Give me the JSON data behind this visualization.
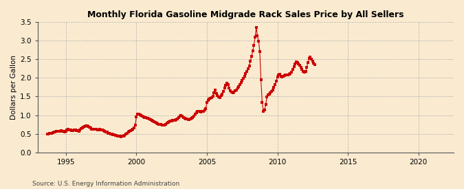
{
  "title": "Monthly Florida Gasoline Midgrade Rack Sales Price by All Sellers",
  "ylabel": "Dollars per Gallon",
  "source": "Source: U.S. Energy Information Administration",
  "background_color": "#faebd0",
  "dot_color": "#cc0000",
  "grid_color": "#aaaaaa",
  "xlim": [
    1993.0,
    2022.5
  ],
  "ylim": [
    0.0,
    3.5
  ],
  "yticks": [
    0.0,
    0.5,
    1.0,
    1.5,
    2.0,
    2.5,
    3.0,
    3.5
  ],
  "xticks": [
    1995,
    2000,
    2005,
    2010,
    2015,
    2020
  ],
  "data": [
    [
      1993.67,
      0.49
    ],
    [
      1993.75,
      0.5
    ],
    [
      1993.83,
      0.51
    ],
    [
      1993.92,
      0.52
    ],
    [
      1994.0,
      0.52
    ],
    [
      1994.08,
      0.53
    ],
    [
      1994.17,
      0.54
    ],
    [
      1994.25,
      0.55
    ],
    [
      1994.33,
      0.56
    ],
    [
      1994.42,
      0.57
    ],
    [
      1994.5,
      0.57
    ],
    [
      1994.58,
      0.57
    ],
    [
      1994.67,
      0.58
    ],
    [
      1994.75,
      0.57
    ],
    [
      1994.83,
      0.56
    ],
    [
      1994.92,
      0.55
    ],
    [
      1995.0,
      0.57
    ],
    [
      1995.08,
      0.6
    ],
    [
      1995.17,
      0.62
    ],
    [
      1995.25,
      0.61
    ],
    [
      1995.33,
      0.6
    ],
    [
      1995.42,
      0.59
    ],
    [
      1995.5,
      0.59
    ],
    [
      1995.58,
      0.6
    ],
    [
      1995.67,
      0.61
    ],
    [
      1995.75,
      0.59
    ],
    [
      1995.83,
      0.58
    ],
    [
      1995.92,
      0.57
    ],
    [
      1996.0,
      0.61
    ],
    [
      1996.08,
      0.64
    ],
    [
      1996.17,
      0.66
    ],
    [
      1996.25,
      0.68
    ],
    [
      1996.33,
      0.7
    ],
    [
      1996.42,
      0.72
    ],
    [
      1996.5,
      0.71
    ],
    [
      1996.58,
      0.69
    ],
    [
      1996.67,
      0.67
    ],
    [
      1996.75,
      0.65
    ],
    [
      1996.83,
      0.63
    ],
    [
      1996.92,
      0.62
    ],
    [
      1997.0,
      0.63
    ],
    [
      1997.08,
      0.63
    ],
    [
      1997.17,
      0.62
    ],
    [
      1997.25,
      0.61
    ],
    [
      1997.33,
      0.61
    ],
    [
      1997.42,
      0.62
    ],
    [
      1997.5,
      0.61
    ],
    [
      1997.58,
      0.6
    ],
    [
      1997.67,
      0.59
    ],
    [
      1997.75,
      0.57
    ],
    [
      1997.83,
      0.55
    ],
    [
      1997.92,
      0.54
    ],
    [
      1998.0,
      0.52
    ],
    [
      1998.08,
      0.51
    ],
    [
      1998.17,
      0.5
    ],
    [
      1998.25,
      0.49
    ],
    [
      1998.33,
      0.48
    ],
    [
      1998.42,
      0.47
    ],
    [
      1998.5,
      0.46
    ],
    [
      1998.58,
      0.45
    ],
    [
      1998.67,
      0.44
    ],
    [
      1998.75,
      0.43
    ],
    [
      1998.83,
      0.43
    ],
    [
      1998.92,
      0.42
    ],
    [
      1999.0,
      0.43
    ],
    [
      1999.08,
      0.44
    ],
    [
      1999.17,
      0.46
    ],
    [
      1999.25,
      0.49
    ],
    [
      1999.33,
      0.52
    ],
    [
      1999.42,
      0.55
    ],
    [
      1999.5,
      0.57
    ],
    [
      1999.58,
      0.59
    ],
    [
      1999.67,
      0.61
    ],
    [
      1999.75,
      0.62
    ],
    [
      1999.83,
      0.66
    ],
    [
      1999.92,
      0.74
    ],
    [
      2000.0,
      0.96
    ],
    [
      2000.08,
      1.02
    ],
    [
      2000.17,
      1.03
    ],
    [
      2000.25,
      1.01
    ],
    [
      2000.33,
      0.99
    ],
    [
      2000.42,
      0.97
    ],
    [
      2000.5,
      0.95
    ],
    [
      2000.58,
      0.94
    ],
    [
      2000.67,
      0.93
    ],
    [
      2000.75,
      0.92
    ],
    [
      2000.83,
      0.91
    ],
    [
      2000.92,
      0.9
    ],
    [
      2001.0,
      0.88
    ],
    [
      2001.08,
      0.86
    ],
    [
      2001.17,
      0.84
    ],
    [
      2001.25,
      0.82
    ],
    [
      2001.33,
      0.8
    ],
    [
      2001.42,
      0.78
    ],
    [
      2001.5,
      0.77
    ],
    [
      2001.58,
      0.76
    ],
    [
      2001.67,
      0.75
    ],
    [
      2001.75,
      0.75
    ],
    [
      2001.83,
      0.74
    ],
    [
      2001.92,
      0.73
    ],
    [
      2002.0,
      0.74
    ],
    [
      2002.08,
      0.76
    ],
    [
      2002.17,
      0.78
    ],
    [
      2002.25,
      0.8
    ],
    [
      2002.33,
      0.82
    ],
    [
      2002.42,
      0.84
    ],
    [
      2002.5,
      0.85
    ],
    [
      2002.58,
      0.86
    ],
    [
      2002.67,
      0.87
    ],
    [
      2002.75,
      0.87
    ],
    [
      2002.83,
      0.88
    ],
    [
      2002.92,
      0.9
    ],
    [
      2003.0,
      0.93
    ],
    [
      2003.08,
      0.97
    ],
    [
      2003.17,
      0.99
    ],
    [
      2003.25,
      0.97
    ],
    [
      2003.33,
      0.94
    ],
    [
      2003.42,
      0.92
    ],
    [
      2003.5,
      0.9
    ],
    [
      2003.58,
      0.89
    ],
    [
      2003.67,
      0.88
    ],
    [
      2003.75,
      0.88
    ],
    [
      2003.83,
      0.89
    ],
    [
      2003.92,
      0.91
    ],
    [
      2004.0,
      0.94
    ],
    [
      2004.08,
      0.98
    ],
    [
      2004.17,
      1.02
    ],
    [
      2004.25,
      1.07
    ],
    [
      2004.33,
      1.1
    ],
    [
      2004.42,
      1.11
    ],
    [
      2004.5,
      1.1
    ],
    [
      2004.58,
      1.09
    ],
    [
      2004.67,
      1.1
    ],
    [
      2004.75,
      1.11
    ],
    [
      2004.83,
      1.13
    ],
    [
      2004.92,
      1.18
    ],
    [
      2005.0,
      1.35
    ],
    [
      2005.08,
      1.4
    ],
    [
      2005.17,
      1.44
    ],
    [
      2005.25,
      1.46
    ],
    [
      2005.33,
      1.47
    ],
    [
      2005.42,
      1.5
    ],
    [
      2005.5,
      1.6
    ],
    [
      2005.58,
      1.68
    ],
    [
      2005.67,
      1.58
    ],
    [
      2005.75,
      1.52
    ],
    [
      2005.83,
      1.48
    ],
    [
      2005.92,
      1.47
    ],
    [
      2006.0,
      1.52
    ],
    [
      2006.08,
      1.57
    ],
    [
      2006.17,
      1.63
    ],
    [
      2006.25,
      1.72
    ],
    [
      2006.33,
      1.8
    ],
    [
      2006.42,
      1.85
    ],
    [
      2006.5,
      1.82
    ],
    [
      2006.58,
      1.72
    ],
    [
      2006.67,
      1.65
    ],
    [
      2006.75,
      1.61
    ],
    [
      2006.83,
      1.6
    ],
    [
      2006.92,
      1.62
    ],
    [
      2007.0,
      1.65
    ],
    [
      2007.08,
      1.68
    ],
    [
      2007.17,
      1.72
    ],
    [
      2007.25,
      1.77
    ],
    [
      2007.33,
      1.82
    ],
    [
      2007.42,
      1.87
    ],
    [
      2007.5,
      1.93
    ],
    [
      2007.58,
      1.98
    ],
    [
      2007.67,
      2.05
    ],
    [
      2007.75,
      2.12
    ],
    [
      2007.83,
      2.18
    ],
    [
      2007.92,
      2.25
    ],
    [
      2008.0,
      2.32
    ],
    [
      2008.08,
      2.45
    ],
    [
      2008.17,
      2.58
    ],
    [
      2008.25,
      2.72
    ],
    [
      2008.33,
      2.88
    ],
    [
      2008.42,
      3.1
    ],
    [
      2008.5,
      3.35
    ],
    [
      2008.58,
      3.13
    ],
    [
      2008.67,
      2.98
    ],
    [
      2008.75,
      2.7
    ],
    [
      2008.83,
      1.95
    ],
    [
      2008.92,
      1.35
    ],
    [
      2009.0,
      1.1
    ],
    [
      2009.08,
      1.13
    ],
    [
      2009.17,
      1.28
    ],
    [
      2009.25,
      1.48
    ],
    [
      2009.33,
      1.55
    ],
    [
      2009.42,
      1.57
    ],
    [
      2009.5,
      1.6
    ],
    [
      2009.58,
      1.64
    ],
    [
      2009.67,
      1.68
    ],
    [
      2009.75,
      1.74
    ],
    [
      2009.83,
      1.82
    ],
    [
      2009.92,
      1.92
    ],
    [
      2010.0,
      2.02
    ],
    [
      2010.08,
      2.08
    ],
    [
      2010.17,
      2.1
    ],
    [
      2010.25,
      2.05
    ],
    [
      2010.33,
      2.02
    ],
    [
      2010.42,
      2.04
    ],
    [
      2010.5,
      2.06
    ],
    [
      2010.58,
      2.07
    ],
    [
      2010.67,
      2.07
    ],
    [
      2010.75,
      2.08
    ],
    [
      2010.83,
      2.09
    ],
    [
      2010.92,
      2.11
    ],
    [
      2011.0,
      2.15
    ],
    [
      2011.08,
      2.22
    ],
    [
      2011.17,
      2.3
    ],
    [
      2011.25,
      2.38
    ],
    [
      2011.33,
      2.43
    ],
    [
      2011.42,
      2.42
    ],
    [
      2011.5,
      2.38
    ],
    [
      2011.58,
      2.33
    ],
    [
      2011.67,
      2.28
    ],
    [
      2011.75,
      2.22
    ],
    [
      2011.83,
      2.18
    ],
    [
      2011.92,
      2.15
    ],
    [
      2012.0,
      2.18
    ],
    [
      2012.08,
      2.28
    ],
    [
      2012.17,
      2.42
    ],
    [
      2012.25,
      2.52
    ],
    [
      2012.33,
      2.55
    ],
    [
      2012.42,
      2.5
    ],
    [
      2012.5,
      2.45
    ],
    [
      2012.58,
      2.4
    ],
    [
      2012.67,
      2.35
    ]
  ]
}
